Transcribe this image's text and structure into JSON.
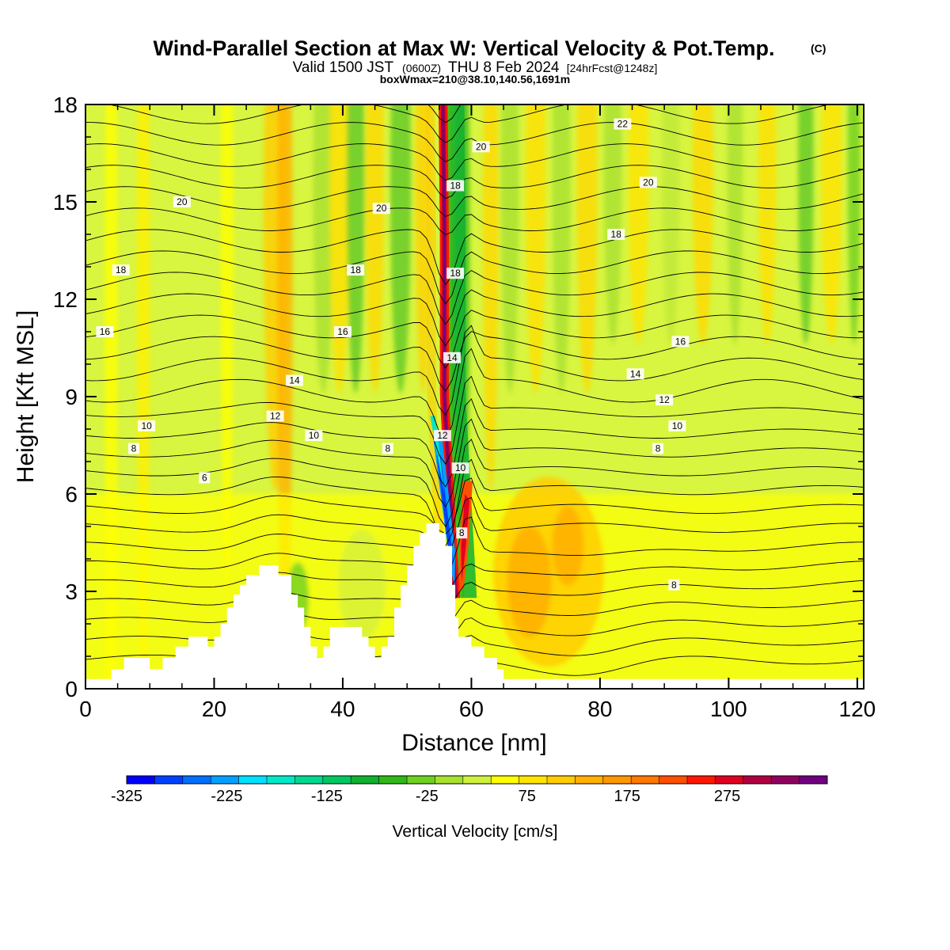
{
  "chart_data": {
    "type": "heatmap",
    "title": "Wind-Parallel Section at Max W: Vertical Velocity & Pot.Temp.",
    "copyright_mark": "(C)",
    "subtitle": {
      "prefix": "Valid 1500 JST",
      "utc": "(0600Z)",
      "date": "THU 8 Feb 2024",
      "forecast": "[24hrFcst@1248z]"
    },
    "subtitle2": "boxWmax=210@38.10,140.56,1691m",
    "xlabel": "Distance [nm]",
    "ylabel": "Height [Kft MSL]",
    "xlim": [
      0,
      121
    ],
    "ylim": [
      0,
      18
    ],
    "xticks": [
      "0",
      "20",
      "40",
      "60",
      "80",
      "100",
      "120"
    ],
    "yticks": [
      "0",
      "3",
      "6",
      "9",
      "12",
      "15",
      "18"
    ],
    "grid": false,
    "colorbar": {
      "title": "Vertical Velocity [cm/s]",
      "labels": [
        "-325",
        "-225",
        "-125",
        "-25",
        "75",
        "175",
        "275"
      ],
      "colors": [
        "#0000ff",
        "#0040ff",
        "#0070ff",
        "#00a0ff",
        "#00e0ff",
        "#00e8c8",
        "#00d890",
        "#00c860",
        "#10b030",
        "#30b818",
        "#70d020",
        "#a8e030",
        "#d0f040",
        "#ffff00",
        "#ffe400",
        "#ffcc00",
        "#ffb000",
        "#ff9800",
        "#ff7800",
        "#ff5000",
        "#ff1800",
        "#e00020",
        "#b00040",
        "#900060",
        "#700080"
      ]
    },
    "terrain_kft": [
      [
        0,
        0.3
      ],
      [
        4,
        0.3
      ],
      [
        4,
        0.6
      ],
      [
        6,
        0.6
      ],
      [
        6,
        0.95
      ],
      [
        10,
        0.95
      ],
      [
        10,
        0.6
      ],
      [
        12,
        0.6
      ],
      [
        12,
        0.95
      ],
      [
        14,
        0.95
      ],
      [
        14,
        1.3
      ],
      [
        16,
        1.3
      ],
      [
        16,
        1.6
      ],
      [
        19,
        1.6
      ],
      [
        19,
        1.3
      ],
      [
        20,
        1.3
      ],
      [
        20,
        1.6
      ],
      [
        21,
        1.6
      ],
      [
        21,
        2.0
      ],
      [
        22,
        2.0
      ],
      [
        22,
        2.5
      ],
      [
        23,
        2.5
      ],
      [
        23,
        2.9
      ],
      [
        24,
        2.9
      ],
      [
        24,
        3.2
      ],
      [
        25,
        3.2
      ],
      [
        25,
        3.5
      ],
      [
        27,
        3.5
      ],
      [
        27,
        3.8
      ],
      [
        30,
        3.8
      ],
      [
        30,
        3.5
      ],
      [
        32,
        3.5
      ],
      [
        32,
        2.9
      ],
      [
        33,
        2.9
      ],
      [
        33,
        2.5
      ],
      [
        34,
        2.5
      ],
      [
        34,
        1.9
      ],
      [
        35,
        1.9
      ],
      [
        35,
        1.3
      ],
      [
        36,
        1.3
      ],
      [
        36,
        0.95
      ],
      [
        37,
        0.95
      ],
      [
        37,
        1.3
      ],
      [
        38,
        1.3
      ],
      [
        38,
        1.9
      ],
      [
        43,
        1.9
      ],
      [
        43,
        1.6
      ],
      [
        44,
        1.6
      ],
      [
        44,
        1.3
      ],
      [
        45,
        1.3
      ],
      [
        45,
        0.95
      ],
      [
        46,
        0.95
      ],
      [
        46,
        1.3
      ],
      [
        47,
        1.3
      ],
      [
        47,
        1.6
      ],
      [
        48,
        1.6
      ],
      [
        48,
        2.5
      ],
      [
        49,
        2.5
      ],
      [
        49,
        3.2
      ],
      [
        50,
        3.2
      ],
      [
        50,
        3.8
      ],
      [
        51,
        3.8
      ],
      [
        51,
        4.4
      ],
      [
        52,
        4.4
      ],
      [
        52,
        4.8
      ],
      [
        53,
        4.8
      ],
      [
        53,
        5.1
      ],
      [
        55,
        5.1
      ],
      [
        55,
        4.8
      ],
      [
        56,
        4.8
      ],
      [
        56,
        4.4
      ],
      [
        57,
        4.4
      ],
      [
        57,
        3.2
      ],
      [
        57.5,
        3.2
      ],
      [
        57.5,
        2.2
      ],
      [
        58,
        2.2
      ],
      [
        58,
        1.6
      ],
      [
        60,
        1.6
      ],
      [
        60,
        1.3
      ],
      [
        62,
        1.3
      ],
      [
        62,
        0.95
      ],
      [
        64,
        0.95
      ],
      [
        64,
        0.6
      ],
      [
        65,
        0.6
      ],
      [
        65,
        0.3
      ],
      [
        121,
        0.3
      ]
    ],
    "contour_labels": [
      {
        "text": "20",
        "x": 15,
        "y": 15.0
      },
      {
        "text": "18",
        "x": 5.5,
        "y": 12.9
      },
      {
        "text": "16",
        "x": 3,
        "y": 11.0
      },
      {
        "text": "10",
        "x": 9.5,
        "y": 8.1
      },
      {
        "text": "8",
        "x": 7.5,
        "y": 7.4
      },
      {
        "text": "6",
        "x": 18.5,
        "y": 6.5
      },
      {
        "text": "20",
        "x": 46,
        "y": 14.8
      },
      {
        "text": "18",
        "x": 42,
        "y": 12.9
      },
      {
        "text": "16",
        "x": 40,
        "y": 11.0
      },
      {
        "text": "14",
        "x": 32.5,
        "y": 9.5
      },
      {
        "text": "12",
        "x": 29.5,
        "y": 8.4
      },
      {
        "text": "10",
        "x": 35.5,
        "y": 7.8
      },
      {
        "text": "8",
        "x": 47,
        "y": 7.4
      },
      {
        "text": "18",
        "x": 57.5,
        "y": 15.5
      },
      {
        "text": "18",
        "x": 57.5,
        "y": 12.8
      },
      {
        "text": "14",
        "x": 57,
        "y": 10.2
      },
      {
        "text": "12",
        "x": 55.5,
        "y": 7.8
      },
      {
        "text": "10",
        "x": 58.3,
        "y": 6.8
      },
      {
        "text": "8",
        "x": 58.5,
        "y": 4.8
      },
      {
        "text": "20",
        "x": 61.5,
        "y": 16.7
      },
      {
        "text": "22",
        "x": 83.5,
        "y": 17.4
      },
      {
        "text": "20",
        "x": 87.5,
        "y": 15.6
      },
      {
        "text": "18",
        "x": 82.5,
        "y": 14.0
      },
      {
        "text": "16",
        "x": 92.5,
        "y": 10.7
      },
      {
        "text": "14",
        "x": 85.5,
        "y": 9.7
      },
      {
        "text": "12",
        "x": 90,
        "y": 8.9
      },
      {
        "text": "10",
        "x": 92,
        "y": 8.1
      },
      {
        "text": "8",
        "x": 89,
        "y": 7.4
      },
      {
        "text": "8",
        "x": 91.5,
        "y": 3.2
      }
    ]
  }
}
